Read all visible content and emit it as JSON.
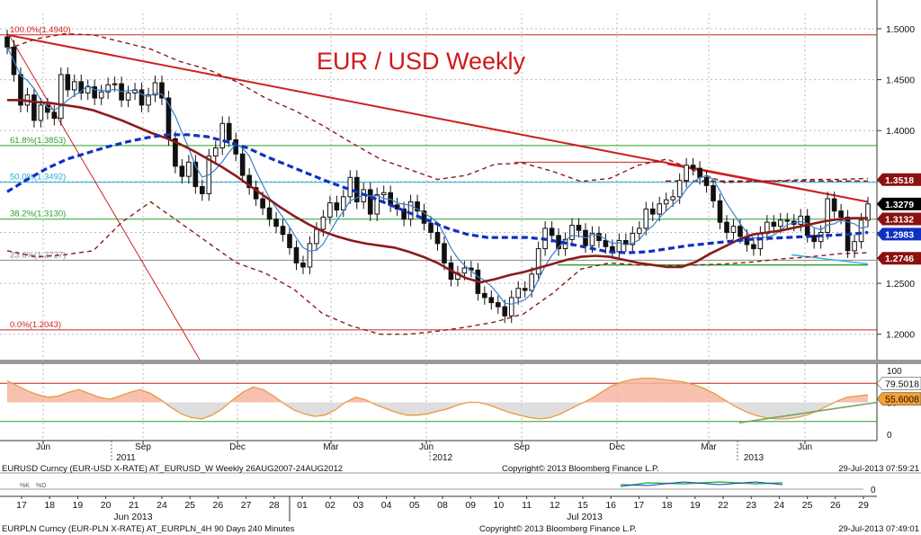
{
  "chart_data": {
    "type": "candlestick",
    "title": "EUR / USD Weekly",
    "instrument": "EURUSD Curncy (EUR-USD X-RATE) AT_EURUSD_W  Weekly 26AUG2007-24AUG2012",
    "copyright": "Copyright© 2013 Bloomberg Finance L.P.",
    "timestamp": "29-Jul-2013 07:59:21",
    "y_axis": {
      "ylim": [
        1.175,
        1.515
      ],
      "ticks": [
        "1.5000",
        "1.4500",
        "1.4000",
        "1.3500",
        "1.3000",
        "1.2500",
        "1.2000"
      ]
    },
    "x_axis": {
      "month_ticks": [
        "Jun",
        "Sep",
        "Dec",
        "Mar",
        "Jun",
        "Sep",
        "Dec",
        "Mar",
        "Jun"
      ],
      "year_ticks": [
        "2011",
        "2012",
        "2013"
      ]
    },
    "fibonacci_levels": [
      {
        "label": "100.0%(1.4940)",
        "value": 1.494
      },
      {
        "label": "61.8%(1.3853)",
        "value": 1.3853
      },
      {
        "label": "50.0%(1.3492)",
        "value": 1.3492
      },
      {
        "label": "38.2%(1.3130)",
        "value": 1.313
      },
      {
        "label": "23.6%(1.2727)",
        "value": 1.2727
      },
      {
        "label": "0.0%(1.2043)",
        "value": 1.2043
      }
    ],
    "price_flags": [
      {
        "label": "1.3518",
        "value": 1.3518,
        "color": "#8b1010"
      },
      {
        "label": "1.3279",
        "value": 1.3279,
        "color": "#000000"
      },
      {
        "label": "1.3132",
        "value": 1.3132,
        "color": "#8b1010"
      },
      {
        "label": "1.2983",
        "value": 1.2983,
        "color": "#1030c0"
      },
      {
        "label": "1.2746",
        "value": 1.2746,
        "color": "#8b1010"
      }
    ],
    "candles_close": [
      1.482,
      1.455,
      1.425,
      1.435,
      1.41,
      1.425,
      1.418,
      1.412,
      1.455,
      1.44,
      1.448,
      1.437,
      1.443,
      1.432,
      1.438,
      1.445,
      1.446,
      1.43,
      1.437,
      1.44,
      1.425,
      1.435,
      1.447,
      1.432,
      1.392,
      1.365,
      1.355,
      1.369,
      1.345,
      1.338,
      1.375,
      1.383,
      1.407,
      1.391,
      1.377,
      1.356,
      1.344,
      1.333,
      1.324,
      1.313,
      1.306,
      1.298,
      1.285,
      1.27,
      1.266,
      1.289,
      1.303,
      1.315,
      1.329,
      1.322,
      1.335,
      1.354,
      1.33,
      1.342,
      1.318,
      1.337,
      1.339,
      1.327,
      1.323,
      1.313,
      1.33,
      1.321,
      1.309,
      1.3,
      1.289,
      1.27,
      1.254,
      1.26,
      1.265,
      1.263,
      1.24,
      1.236,
      1.231,
      1.227,
      1.218,
      1.236,
      1.245,
      1.243,
      1.259,
      1.284,
      1.304,
      1.297,
      1.284,
      1.293,
      1.307,
      1.302,
      1.287,
      1.299,
      1.292,
      1.286,
      1.281,
      1.292,
      1.288,
      1.299,
      1.304,
      1.323,
      1.318,
      1.328,
      1.332,
      1.335,
      1.351,
      1.366,
      1.363,
      1.354,
      1.346,
      1.331,
      1.31,
      1.3,
      1.306,
      1.296,
      1.288,
      1.284,
      1.299,
      1.31,
      1.306,
      1.312,
      1.311,
      1.308,
      1.316,
      1.297,
      1.291,
      1.3,
      1.333,
      1.321,
      1.315,
      1.282,
      1.291,
      1.312,
      1.328
    ],
    "ma_slow_dark_red": [
      1.43,
      1.43,
      1.428,
      1.427,
      1.425,
      1.423,
      1.42,
      1.415,
      1.41,
      1.404,
      1.398,
      1.393,
      1.387,
      1.38,
      1.372,
      1.364,
      1.355,
      1.345,
      1.335,
      1.325,
      1.316,
      1.308,
      1.301,
      1.296,
      1.292,
      1.289,
      1.287,
      1.285,
      1.281,
      1.276,
      1.27,
      1.262,
      1.255,
      1.251,
      1.254,
      1.258,
      1.261,
      1.265,
      1.269,
      1.273,
      1.276,
      1.277,
      1.276,
      1.273,
      1.27,
      1.268,
      1.266,
      1.266,
      1.271,
      1.279,
      1.286,
      1.293,
      1.298,
      1.3,
      1.302,
      1.305,
      1.308,
      1.311,
      1.313,
      1.314,
      1.314
    ],
    "ma_blue_dashed": [
      1.34,
      1.352,
      1.363,
      1.372,
      1.378,
      1.384,
      1.389,
      1.393,
      1.396,
      1.396,
      1.394,
      1.389,
      1.383,
      1.374,
      1.366,
      1.358,
      1.35,
      1.343,
      1.336,
      1.328,
      1.32,
      1.312,
      1.304,
      1.298,
      1.295,
      1.295,
      1.295,
      1.293,
      1.289,
      1.285,
      1.281,
      1.28,
      1.281,
      1.284,
      1.287,
      1.289,
      1.291,
      1.293,
      1.294,
      1.295,
      1.296,
      1.297,
      1.298,
      1.3
    ],
    "bollinger_upper": [
      1.48,
      1.49,
      1.495,
      1.494,
      1.487,
      1.48,
      1.468,
      1.46,
      1.448,
      1.432,
      1.42,
      1.405,
      1.388,
      1.372,
      1.362,
      1.352,
      1.356,
      1.367,
      1.368,
      1.36,
      1.35,
      1.353,
      1.366,
      1.372,
      1.36,
      1.349,
      1.35,
      1.351,
      1.352,
      1.352,
      1.353
    ],
    "bollinger_lower": [
      1.282,
      1.276,
      1.278,
      1.282,
      1.31,
      1.33,
      1.31,
      1.29,
      1.27,
      1.26,
      1.244,
      1.22,
      1.208,
      1.2,
      1.2,
      1.203,
      1.207,
      1.212,
      1.22,
      1.24,
      1.264,
      1.27,
      1.268,
      1.267,
      1.268,
      1.269,
      1.271,
      1.274,
      1.276,
      1.279,
      1.28
    ],
    "oscillator": {
      "ylim": [
        -10,
        110
      ],
      "ticks": [
        "100",
        "50",
        "0"
      ],
      "flags": [
        {
          "label": "79.5018",
          "value": 79.5,
          "color": "#ffffff"
        },
        {
          "label": "55.6008",
          "value": 55.6,
          "color": "#f5a030"
        }
      ],
      "overbought": 80,
      "oversold": 20,
      "values": [
        84,
        76,
        68,
        62,
        58,
        60,
        66,
        70,
        64,
        58,
        55,
        60,
        66,
        70,
        64,
        54,
        42,
        32,
        26,
        24,
        30,
        40,
        54,
        66,
        74,
        70,
        60,
        48,
        38,
        32,
        28,
        30,
        38,
        50,
        58,
        54,
        46,
        40,
        34,
        30,
        30,
        32,
        36,
        40,
        46,
        50,
        50,
        46,
        40,
        34,
        30,
        26,
        24,
        26,
        32,
        40,
        48,
        56,
        66,
        76,
        82,
        86,
        88,
        88,
        86,
        84,
        82,
        78,
        72,
        64,
        54,
        44,
        36,
        30,
        26,
        24,
        24,
        26,
        30,
        36,
        44,
        52,
        58,
        60,
        62
      ]
    },
    "lower_strip": {
      "instrument": "EURPLN Curncy (EUR-PLN X-RATE) AT_EURPLN_4H 90 Days 240 Minutes",
      "copyright": "Copyright© 2013 Bloomberg Finance L.P.",
      "timestamp": "29-Jul-2013 07:49:01",
      "day_ticks": [
        "17",
        "18",
        "19",
        "20",
        "21",
        "24",
        "25",
        "26",
        "27",
        "28",
        "01",
        "02",
        "03",
        "04",
        "05",
        "08",
        "09",
        "10",
        "11",
        "12",
        "15",
        "16",
        "17",
        "18",
        "19",
        "22",
        "23",
        "24",
        "25",
        "26",
        "29"
      ],
      "month_ticks": [
        "Jun 2013",
        "Jul 2013"
      ],
      "zero_label": "0",
      "legend": [
        "%K",
        "%D"
      ]
    }
  }
}
